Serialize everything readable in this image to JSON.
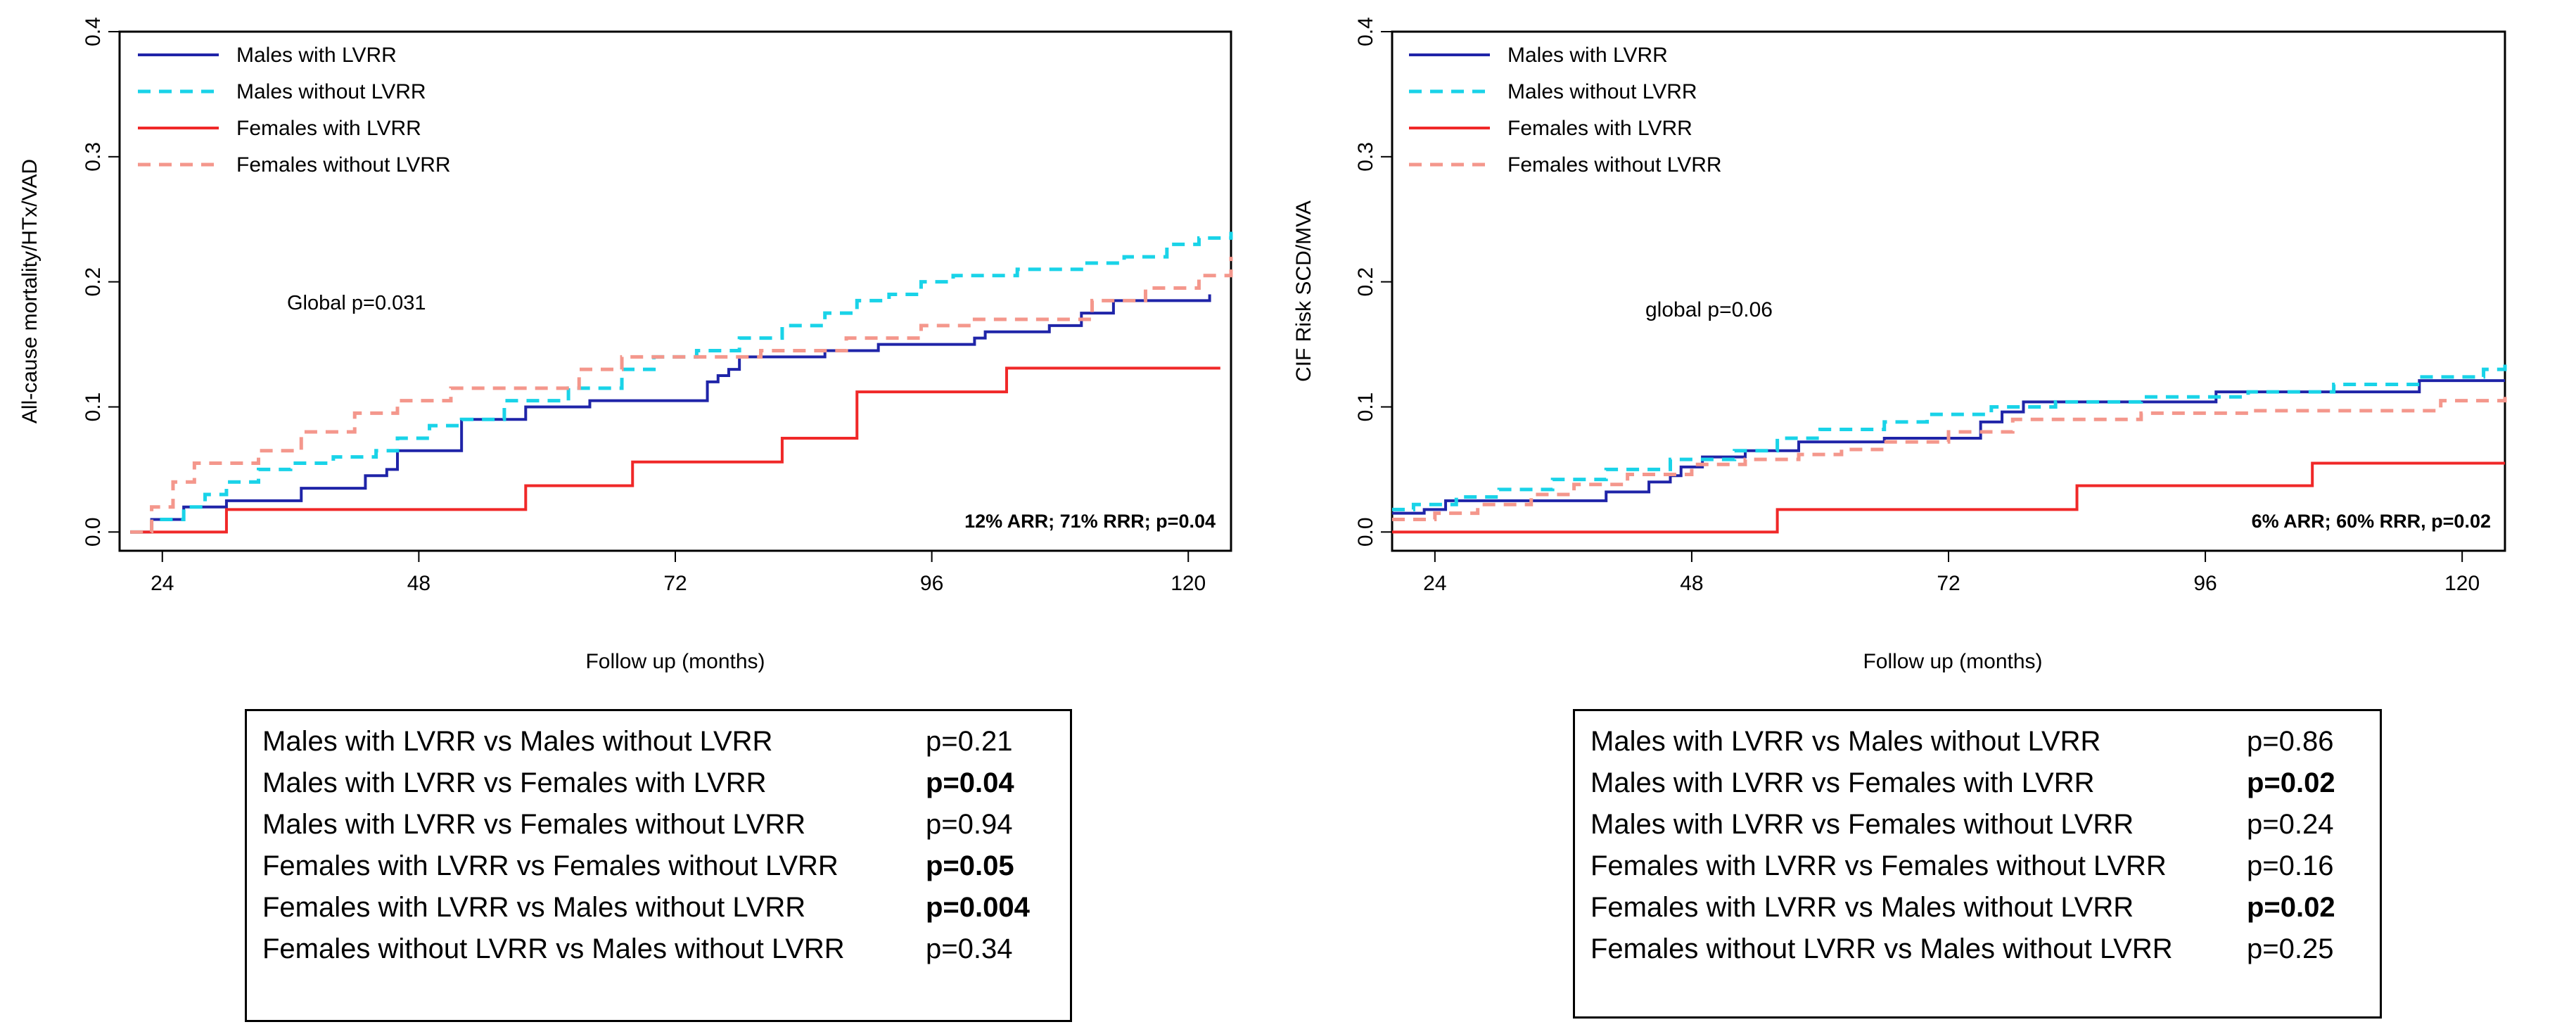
{
  "chart_data": [
    {
      "type": "line",
      "subtype": "step",
      "ylabel": "All-cause mortality/HTx/VAD",
      "xlabel": "Follow up (months)",
      "xlim": [
        20,
        124
      ],
      "ylim": [
        -0.015,
        0.4
      ],
      "xticks": [
        24,
        48,
        72,
        96,
        120
      ],
      "yticks": [
        0.0,
        0.1,
        0.2,
        0.3,
        0.4
      ],
      "ytick_labels": [
        "0.0",
        "0.1",
        "0.2",
        "0.3",
        "0.4"
      ],
      "grid": false,
      "legend_position": "top-left",
      "annotations": {
        "global": "Global p=0.031",
        "effect": "12% ARR; 71% RRR; p=0.04"
      },
      "series": [
        {
          "name": "Males with LVRR",
          "color": "#1f24a8",
          "dash": "solid",
          "x": [
            21,
            23,
            26,
            30,
            37,
            43,
            45,
            46,
            52,
            58,
            64,
            75,
            76,
            77,
            78,
            80,
            82,
            86,
            91,
            100,
            101,
            107,
            110,
            113,
            122
          ],
          "y": [
            0.0,
            0.01,
            0.02,
            0.025,
            0.035,
            0.045,
            0.05,
            0.065,
            0.09,
            0.1,
            0.105,
            0.12,
            0.125,
            0.13,
            0.14,
            0.14,
            0.14,
            0.145,
            0.15,
            0.155,
            0.16,
            0.165,
            0.175,
            0.185,
            0.19
          ]
        },
        {
          "name": "Males without LVRR",
          "color": "#19d3e8",
          "dash": "dashed",
          "x": [
            21,
            23,
            26,
            28,
            30,
            33,
            36,
            40,
            44,
            46,
            49,
            52,
            56,
            62,
            67,
            70,
            74,
            78,
            82,
            86,
            89,
            92,
            95,
            98,
            104,
            110,
            114,
            118,
            121,
            124
          ],
          "y": [
            0.0,
            0.01,
            0.02,
            0.03,
            0.04,
            0.05,
            0.055,
            0.06,
            0.065,
            0.075,
            0.085,
            0.09,
            0.105,
            0.115,
            0.13,
            0.14,
            0.145,
            0.155,
            0.165,
            0.175,
            0.185,
            0.19,
            0.2,
            0.205,
            0.21,
            0.215,
            0.22,
            0.23,
            0.235,
            0.24
          ]
        },
        {
          "name": "Females with LVRR",
          "color": "#f02828",
          "dash": "solid",
          "x": [
            21,
            29,
            30,
            58,
            68,
            82,
            89,
            103,
            123
          ],
          "y": [
            0.0,
            0.0,
            0.018,
            0.037,
            0.056,
            0.075,
            0.112,
            0.131,
            0.131
          ]
        },
        {
          "name": "Females without LVRR",
          "color": "#f4978c",
          "dash": "dashed",
          "x": [
            21,
            23,
            25,
            27,
            33,
            37,
            42,
            46,
            51,
            63,
            67,
            80,
            88,
            95,
            100,
            111,
            116,
            121,
            124
          ],
          "y": [
            0.0,
            0.02,
            0.04,
            0.055,
            0.065,
            0.08,
            0.095,
            0.105,
            0.115,
            0.13,
            0.14,
            0.145,
            0.155,
            0.165,
            0.17,
            0.185,
            0.195,
            0.205,
            0.22
          ]
        }
      ],
      "pairwise_table": [
        {
          "comparison": "Males with LVRR vs Males without LVRR",
          "p": "p=0.21",
          "bold": false
        },
        {
          "comparison": "Males with LVRR vs Females with LVRR",
          "p": "p=0.04",
          "bold": true
        },
        {
          "comparison": "Males with LVRR vs Females without LVRR",
          "p": "p=0.94",
          "bold": false
        },
        {
          "comparison": "Females with LVRR vs Females without LVRR",
          "p": "p=0.05",
          "bold": true
        },
        {
          "comparison": "Females with LVRR vs Males without LVRR",
          "p": "p=0.004",
          "bold": true
        },
        {
          "comparison": "Females without LVRR vs Males without LVRR",
          "p": "p=0.34",
          "bold": false
        }
      ]
    },
    {
      "type": "line",
      "subtype": "step",
      "ylabel": "CIF Risk SCD/MVA",
      "xlabel": "Follow up (months)",
      "xlim": [
        20,
        124
      ],
      "ylim": [
        -0.015,
        0.4
      ],
      "xticks": [
        24,
        48,
        72,
        96,
        120
      ],
      "yticks": [
        0.0,
        0.1,
        0.2,
        0.3,
        0.4
      ],
      "ytick_labels": [
        "0.0",
        "0.1",
        "0.2",
        "0.3",
        "0.4"
      ],
      "grid": false,
      "legend_position": "top-left",
      "annotations": {
        "global": "global p=0.06",
        "effect": "6% ARR; 60% RRR, p=0.02"
      },
      "series": [
        {
          "name": "Males with LVRR",
          "color": "#1f24a8",
          "dash": "solid",
          "x": [
            20,
            23,
            25,
            40,
            44,
            46,
            47,
            49,
            53,
            58,
            66,
            75,
            77,
            79,
            97,
            116,
            124
          ],
          "y": [
            0.015,
            0.018,
            0.025,
            0.032,
            0.04,
            0.045,
            0.052,
            0.06,
            0.065,
            0.072,
            0.075,
            0.088,
            0.096,
            0.104,
            0.112,
            0.121,
            0.121
          ]
        },
        {
          "name": "Males without LVRR",
          "color": "#19d3e8",
          "dash": "dashed",
          "x": [
            20,
            22,
            26,
            30,
            35,
            40,
            46,
            52,
            56,
            60,
            66,
            70,
            76,
            82,
            90,
            100,
            108,
            116,
            122,
            124
          ],
          "y": [
            0.018,
            0.022,
            0.028,
            0.034,
            0.042,
            0.05,
            0.058,
            0.065,
            0.075,
            0.082,
            0.088,
            0.094,
            0.1,
            0.104,
            0.108,
            0.112,
            0.118,
            0.124,
            0.13,
            0.138
          ]
        },
        {
          "name": "Females with LVRR",
          "color": "#f02828",
          "dash": "solid",
          "x": [
            20,
            56,
            84,
            106,
            124
          ],
          "y": [
            0.0,
            0.018,
            0.037,
            0.055,
            0.055
          ]
        },
        {
          "name": "Females without LVRR",
          "color": "#f4978c",
          "dash": "dashed",
          "x": [
            20,
            24,
            28,
            33,
            37,
            42,
            48,
            53,
            58,
            62,
            66,
            72,
            78,
            90,
            100,
            118,
            124
          ],
          "y": [
            0.01,
            0.015,
            0.022,
            0.03,
            0.038,
            0.046,
            0.054,
            0.058,
            0.062,
            0.066,
            0.072,
            0.08,
            0.09,
            0.095,
            0.097,
            0.105,
            0.108
          ]
        }
      ],
      "pairwise_table": [
        {
          "comparison": "Males with LVRR vs Males without LVRR",
          "p": "p=0.86",
          "bold": false
        },
        {
          "comparison": "Males with LVRR vs Females with LVRR",
          "p": "p=0.02",
          "bold": true
        },
        {
          "comparison": "Males with LVRR vs Females without LVRR",
          "p": "p=0.24",
          "bold": false
        },
        {
          "comparison": "Females with LVRR vs Females without LVRR",
          "p": "p=0.16",
          "bold": false
        },
        {
          "comparison": "Females with LVRR vs Males without LVRR",
          "p": "p=0.02",
          "bold": true
        },
        {
          "comparison": "Females without LVRR vs Males without LVRR",
          "p": "p=0.25",
          "bold": false
        }
      ]
    }
  ]
}
